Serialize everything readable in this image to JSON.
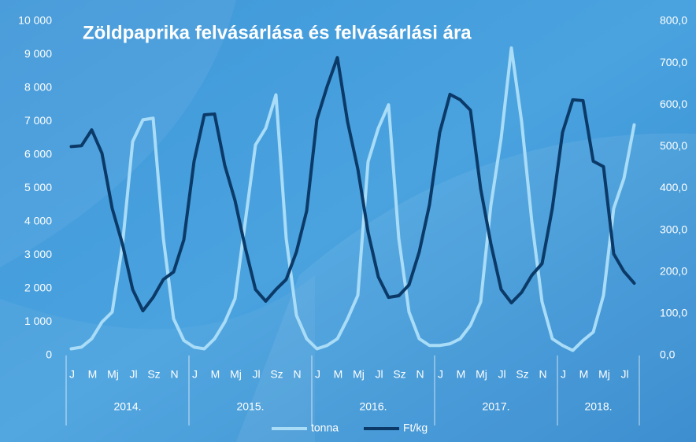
{
  "chart_data": {
    "type": "line",
    "title": "Zöldpaprika felvásárlása és felvásárlási ára",
    "categories": [
      "J",
      null,
      "M",
      null,
      "Mj",
      null,
      "Jl",
      null,
      "Sz",
      null,
      "N",
      null,
      "J",
      null,
      "M",
      null,
      "Mj",
      null,
      "Jl",
      null,
      "Sz",
      null,
      "N",
      null,
      "J",
      null,
      "M",
      null,
      "Mj",
      null,
      "Jl",
      null,
      "Sz",
      null,
      "N",
      null,
      "J",
      null,
      "M",
      null,
      "Mj",
      null,
      "Jl",
      null,
      "Sz",
      null,
      "N",
      null,
      "J",
      null,
      "M",
      null,
      "Mj",
      null,
      "Jl",
      null
    ],
    "x_groups": [
      {
        "label": "2014.",
        "count": 12
      },
      {
        "label": "2015.",
        "count": 12
      },
      {
        "label": "2016.",
        "count": 12
      },
      {
        "label": "2017.",
        "count": 12
      },
      {
        "label": "2018.",
        "count": 8
      }
    ],
    "series": [
      {
        "name": "tonna",
        "color": "#a9dcf7",
        "axis": "y",
        "values": [
          200,
          250,
          500,
          1000,
          1300,
          3300,
          6400,
          7050,
          7100,
          3500,
          1100,
          450,
          250,
          200,
          500,
          1000,
          1700,
          4000,
          6300,
          6800,
          7800,
          3500,
          1200,
          500,
          200,
          300,
          500,
          1100,
          1800,
          5800,
          6800,
          7500,
          3500,
          1300,
          500,
          300,
          300,
          350,
          500,
          900,
          1600,
          4500,
          6500,
          9200,
          7000,
          4000,
          1600,
          500,
          300,
          150,
          450,
          700,
          1800,
          4400,
          5300,
          6900
        ]
      },
      {
        "name": "Ft/kg",
        "color": "#0b3a68",
        "axis": "y2",
        "values": [
          500,
          502,
          540,
          484,
          352,
          267,
          158,
          107,
          139,
          182,
          200,
          277,
          465,
          576,
          578,
          455,
          371,
          258,
          158,
          130,
          158,
          182,
          248,
          346,
          565,
          644,
          713,
          559,
          446,
          295,
          188,
          139,
          143,
          169,
          248,
          361,
          534,
          625,
          612,
          587,
          399,
          267,
          158,
          126,
          151,
          192,
          220,
          352,
          534,
          612,
          610,
          465,
          452,
          243,
          201,
          173
        ]
      }
    ],
    "ylim": [
      0,
      10000
    ],
    "yticks": [
      0,
      {
        "value": 1000,
        "label": "1 000"
      },
      {
        "value": 2000,
        "label": "2 000"
      },
      {
        "value": 3000,
        "label": "3 000"
      },
      {
        "value": 4000,
        "label": "4 000"
      },
      {
        "value": 5000,
        "label": "5 000"
      },
      {
        "value": 6000,
        "label": "6 000"
      },
      {
        "value": 7000,
        "label": "7 000"
      },
      {
        "value": 8000,
        "label": "8 000"
      },
      {
        "value": 9000,
        "label": "9 000"
      },
      {
        "value": 10000,
        "label": "10 000"
      }
    ],
    "y2lim": [
      0,
      800
    ],
    "y2ticks": [
      {
        "value": 0,
        "label": "0,0"
      },
      {
        "value": 100,
        "label": "100,0"
      },
      {
        "value": 200,
        "label": "200,0"
      },
      {
        "value": 300,
        "label": "300,0"
      },
      {
        "value": 400,
        "label": "400,0"
      },
      {
        "value": 500,
        "label": "500,0"
      },
      {
        "value": 600,
        "label": "600,0"
      },
      {
        "value": 700,
        "label": "700,0"
      },
      {
        "value": 800,
        "label": "800,0"
      }
    ],
    "grid": false,
    "legend": "bottom"
  }
}
